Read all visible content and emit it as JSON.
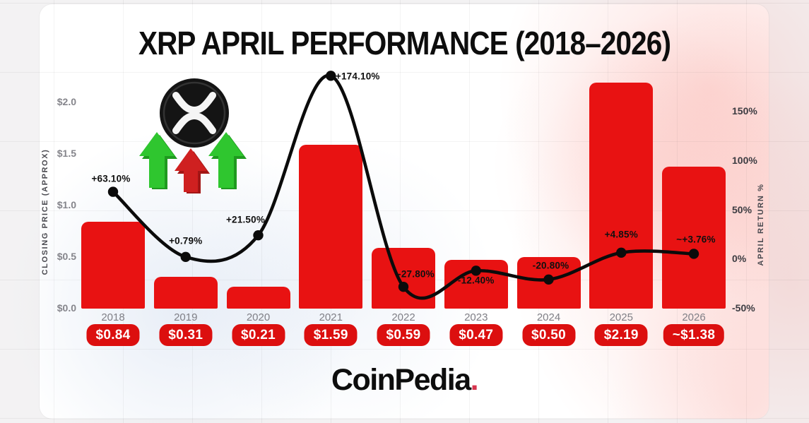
{
  "title": "XRP APRIL PERFORMANCE (2018–2026)",
  "chart_data": {
    "type": "bar",
    "title": "XRP APRIL PERFORMANCE (2018–2026)",
    "categories": [
      "2018",
      "2019",
      "2020",
      "2021",
      "2022",
      "2023",
      "2024",
      "2025",
      "2026"
    ],
    "series": [
      {
        "name": "Closing Price (Approx)",
        "type": "bar",
        "values": [
          0.84,
          0.31,
          0.21,
          1.59,
          0.59,
          0.47,
          0.5,
          2.19,
          1.38
        ],
        "point_labels": [
          "$0.84",
          "$0.31",
          "$0.21",
          "$1.59",
          "$0.59",
          "$0.47",
          "$0.50",
          "$2.19",
          "~$1.38"
        ]
      },
      {
        "name": "April Return %",
        "type": "line",
        "values": [
          63.1,
          0.79,
          21.5,
          174.1,
          -27.8,
          -12.4,
          -20.8,
          4.85,
          3.76
        ],
        "point_labels": [
          "+63.10%",
          "+0.79%",
          "+21.50%",
          "+174.10%",
          "-27.80%",
          "-12.40%",
          "-20.80%",
          "+4.85%",
          "~+3.76%"
        ]
      }
    ],
    "left_axis": {
      "label": "CLOSING PRICE (APPROX)",
      "ticks": [
        "$2.0",
        "$1.5",
        "$1.0",
        "$0.5",
        "$0.0"
      ],
      "min": 0.0,
      "max": 2.0
    },
    "right_axis": {
      "label": "APRIL RETURN %",
      "ticks": [
        "150%",
        "100%",
        "50%",
        "0%",
        "-50%"
      ],
      "min": -50,
      "max": 150
    },
    "grid": true,
    "legend": "none"
  },
  "icons": {
    "coin": "xrp-coin-logo",
    "arrows": [
      "up-arrow-green",
      "up-arrow-red",
      "up-arrow-green"
    ]
  },
  "branding": {
    "name": "CoinPedia",
    "dot": "."
  },
  "colors": {
    "bar": "#e81212",
    "badge": "#dc0f0f",
    "line": "#0b0b0b",
    "pct_label": "#101010",
    "tick_left": "#85858b",
    "tick_right": "#3c3c42",
    "year": "#7f7f86",
    "brand_dot": "#d6344e",
    "arrow_green": "#2fc62f",
    "arrow_red": "#cf2020",
    "coin": "#141414",
    "coin_glyph": "#f5f5f5"
  }
}
